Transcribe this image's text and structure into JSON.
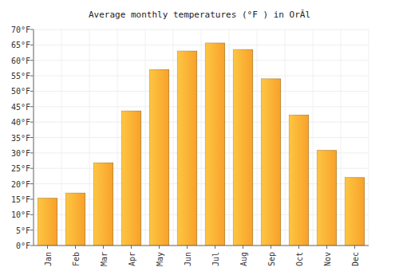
{
  "chart_data": {
    "type": "bar",
    "title": "Average monthly temperatures (°F ) in OrĂl",
    "categories": [
      "Jan",
      "Feb",
      "Mar",
      "Apr",
      "May",
      "Jun",
      "Jul",
      "Aug",
      "Sep",
      "Oct",
      "Nov",
      "Dec"
    ],
    "values": [
      15.3,
      17,
      26.8,
      43.6,
      57,
      63,
      65.6,
      63.5,
      54,
      42.3,
      30.8,
      22
    ],
    "color": "#f8a12a",
    "ylim": [
      0,
      70
    ],
    "yticks": [
      {
        "value": 0,
        "label": "0°F"
      },
      {
        "value": 5,
        "label": "5°F"
      },
      {
        "value": 10,
        "label": "10°F"
      },
      {
        "value": 15,
        "label": "15°F"
      },
      {
        "value": 20,
        "label": "20°F"
      },
      {
        "value": 25,
        "label": "25°F"
      },
      {
        "value": 30,
        "label": "30°F"
      },
      {
        "value": 35,
        "label": "35°F"
      },
      {
        "value": 40,
        "label": "40°F"
      },
      {
        "value": 45,
        "label": "45°F"
      },
      {
        "value": 50,
        "label": "50°F"
      },
      {
        "value": 55,
        "label": "55°F"
      },
      {
        "value": 60,
        "label": "60°F"
      },
      {
        "value": 65,
        "label": "65°F"
      },
      {
        "value": 70,
        "label": "70°F"
      }
    ],
    "grid": true
  }
}
